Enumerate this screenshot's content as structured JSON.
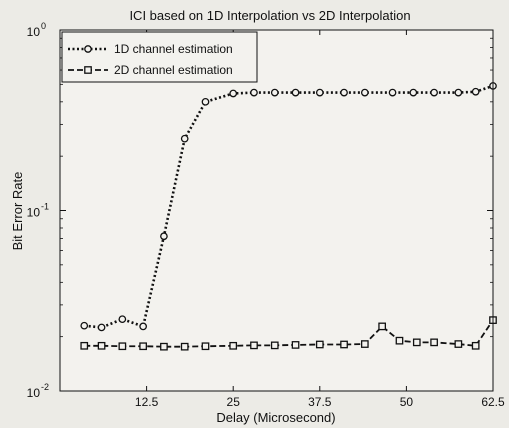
{
  "chart_data": {
    "type": "line",
    "title": "ICI based on 1D Interpolation vs 2D Interpolation",
    "xlabel": "Delay (Microsecond)",
    "ylabel": "Bit Error Rate",
    "xlim": [
      0,
      62.5
    ],
    "ylim": [
      0.01,
      1
    ],
    "yscale": "log",
    "x_ticks": [
      12.5,
      25,
      37.5,
      50,
      62.5
    ],
    "x_tick_labels": [
      "12.5",
      "25",
      "37.5",
      "50",
      "62.5"
    ],
    "y_ticks": [
      0.01,
      0.1,
      1
    ],
    "y_tick_labels": [
      {
        "base": "10",
        "exp": "-2"
      },
      {
        "base": "10",
        "exp": "-1"
      },
      {
        "base": "10",
        "exp": "0"
      }
    ],
    "grid": false,
    "legend_position": "top-left",
    "series": [
      {
        "name": "1D channel estimation",
        "marker": "circle",
        "color": "#111111",
        "x": [
          3.5,
          6,
          9,
          12,
          15,
          18,
          21,
          25,
          28,
          31,
          34,
          37.5,
          41,
          44,
          48,
          51,
          54,
          57.5,
          60,
          62.5
        ],
        "y": [
          0.023,
          0.0225,
          0.025,
          0.0228,
          0.072,
          0.25,
          0.4,
          0.445,
          0.45,
          0.45,
          0.45,
          0.45,
          0.45,
          0.45,
          0.45,
          0.45,
          0.45,
          0.45,
          0.455,
          0.49
        ]
      },
      {
        "name": "2D channel estimation",
        "marker": "square",
        "color": "#111111",
        "x": [
          3.5,
          6,
          9,
          12,
          15,
          18,
          21,
          25,
          28,
          31,
          34,
          37.5,
          41,
          44,
          46.5,
          49,
          51.5,
          54,
          57.5,
          60,
          62.5
        ],
        "y": [
          0.0178,
          0.0178,
          0.0177,
          0.0177,
          0.0176,
          0.0176,
          0.0177,
          0.0178,
          0.0179,
          0.0179,
          0.018,
          0.0181,
          0.0181,
          0.0182,
          0.0228,
          0.019,
          0.0186,
          0.0186,
          0.0182,
          0.0178,
          0.0247
        ]
      }
    ]
  }
}
